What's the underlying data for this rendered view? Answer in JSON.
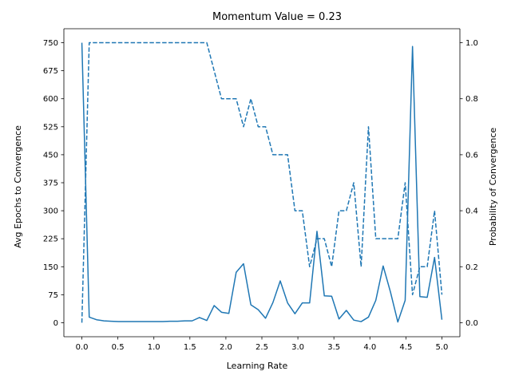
{
  "chart_data": {
    "type": "line",
    "title": "Momentum Value = 0.23",
    "xlabel": "Learning Rate",
    "ylabel_left": "Avg Epochs to Convergence",
    "ylabel_right": "Probability of Convergence",
    "xlim": [
      -0.25,
      5.25
    ],
    "ylim_left": [
      -37.5,
      787.5
    ],
    "ylim_right": [
      -0.05,
      1.05
    ],
    "x_ticks": [
      "0.0",
      "0.5",
      "1.0",
      "1.5",
      "2.0",
      "2.5",
      "3.0",
      "3.5",
      "4.0",
      "4.5",
      "5.0"
    ],
    "y_ticks_left": [
      "0",
      "75",
      "150",
      "225",
      "300",
      "375",
      "450",
      "525",
      "600",
      "675",
      "750"
    ],
    "y_ticks_right": [
      "0.0",
      "0.2",
      "0.4",
      "0.6",
      "0.8",
      "1.0"
    ],
    "grid": false,
    "x": [
      0.0,
      0.102,
      0.204,
      0.306,
      0.408,
      0.51,
      0.612,
      0.714,
      0.816,
      0.918,
      1.02,
      1.122,
      1.224,
      1.327,
      1.429,
      1.531,
      1.633,
      1.735,
      1.837,
      1.939,
      2.041,
      2.143,
      2.245,
      2.347,
      2.449,
      2.551,
      2.653,
      2.755,
      2.857,
      2.959,
      3.061,
      3.163,
      3.265,
      3.367,
      3.469,
      3.571,
      3.673,
      3.776,
      3.878,
      3.98,
      4.082,
      4.184,
      4.286,
      4.388,
      4.49,
      4.592,
      4.694,
      4.796,
      4.898,
      5.0
    ],
    "series": [
      {
        "axis": "left",
        "style": "solid",
        "color": "#1f77b4",
        "values": [
          750,
          15,
          8,
          5,
          4,
          3,
          3,
          3,
          3,
          3,
          3,
          3,
          4,
          4,
          5,
          5,
          14,
          6,
          46,
          28,
          25,
          135,
          158,
          48,
          35,
          12,
          54,
          112,
          53,
          24,
          53,
          53,
          245,
          72,
          71,
          10,
          33,
          7,
          3,
          15,
          60,
          152,
          82,
          2,
          60,
          740,
          70,
          68,
          175,
          8
        ]
      },
      {
        "axis": "right",
        "style": "dashed",
        "color": "#1f77b4",
        "values": [
          0.0,
          1.0,
          1.0,
          1.0,
          1.0,
          1.0,
          1.0,
          1.0,
          1.0,
          1.0,
          1.0,
          1.0,
          1.0,
          1.0,
          1.0,
          1.0,
          1.0,
          1.0,
          0.9,
          0.8,
          0.8,
          0.8,
          0.7,
          0.8,
          0.7,
          0.7,
          0.6,
          0.6,
          0.6,
          0.4,
          0.4,
          0.2,
          0.3,
          0.3,
          0.2,
          0.4,
          0.4,
          0.5,
          0.2,
          0.7,
          0.3,
          0.3,
          0.3,
          0.3,
          0.5,
          0.1,
          0.2,
          0.2,
          0.4,
          0.1
        ]
      }
    ]
  }
}
